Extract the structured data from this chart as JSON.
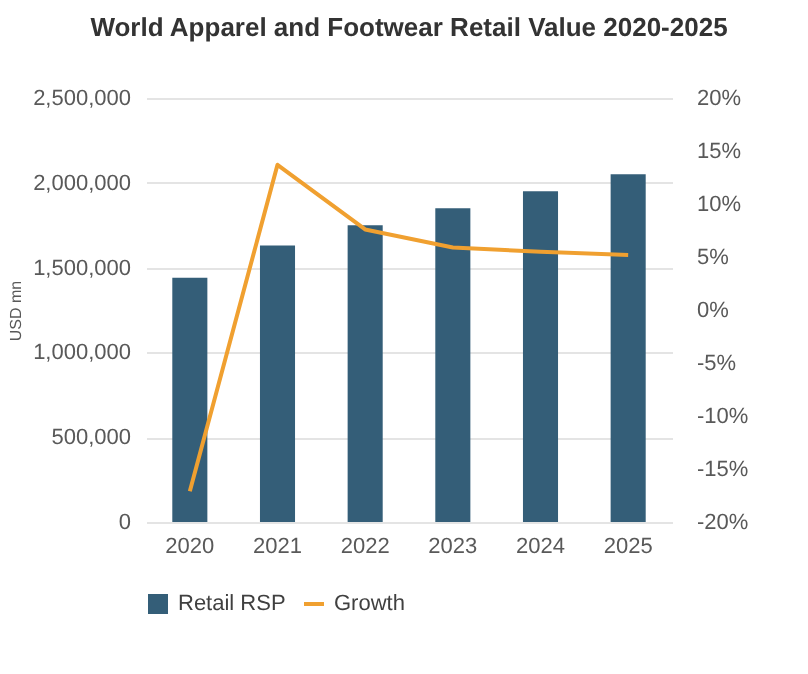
{
  "chart_data": {
    "type": "bar",
    "title": "World Apparel and Footwear Retail Value 2020-2025",
    "ylabel": "USD mn",
    "categories": [
      "2020",
      "2021",
      "2022",
      "2023",
      "2024",
      "2025"
    ],
    "series": [
      {
        "name": "Retail RSP",
        "color": "#345e78",
        "values": [
          1440000,
          1630000,
          1750000,
          1850000,
          1950000,
          2050000
        ]
      },
      {
        "name": "Growth",
        "type": "line",
        "axis": "y2",
        "color": "#f0a030",
        "values": [
          -17.1,
          13.7,
          7.6,
          5.9,
          5.5,
          5.2
        ]
      }
    ],
    "ylim": [
      0,
      2500000
    ],
    "yticks": [
      {
        "value": 0,
        "label": "0"
      },
      {
        "value": 500000,
        "label": "500,000"
      },
      {
        "value": 1000000,
        "label": "1,000,000"
      },
      {
        "value": 1500000,
        "label": "1,500,000"
      },
      {
        "value": 2000000,
        "label": "2,000,000"
      },
      {
        "value": 2500000,
        "label": "2,500,000"
      }
    ],
    "y2lim": [
      -20,
      20
    ],
    "y2ticks": [
      {
        "value": -20,
        "label": "-20%"
      },
      {
        "value": -15,
        "label": "-15%"
      },
      {
        "value": -10,
        "label": "-10%"
      },
      {
        "value": -5,
        "label": "-5%"
      },
      {
        "value": 0,
        "label": "0%"
      },
      {
        "value": 5,
        "label": "5%"
      },
      {
        "value": 10,
        "label": "10%"
      },
      {
        "value": 15,
        "label": "15%"
      },
      {
        "value": 20,
        "label": "20%"
      }
    ],
    "grid": "y",
    "legend": "bottom",
    "line_style": "solid"
  }
}
